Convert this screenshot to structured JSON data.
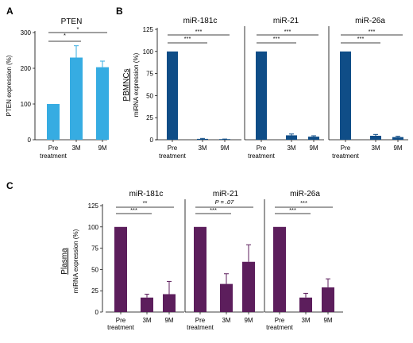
{
  "colors": {
    "pten": "#36ace2",
    "pbmnc": "#0f4d87",
    "plasma": "#5c1e5c",
    "axis": "#000000"
  },
  "chart_data": [
    {
      "panel": "A",
      "type": "bar",
      "title": "PTEN",
      "ylabel": "PTEN expression (%)",
      "categories": [
        "Pre treatment",
        "3M",
        "9M"
      ],
      "values": [
        100,
        230,
        203
      ],
      "errors": [
        0,
        33,
        17
      ],
      "ylim": [
        0,
        300
      ],
      "yticks": [
        0,
        100,
        200,
        300
      ],
      "color": "pten",
      "comparisons": [
        {
          "from": "Pre treatment",
          "to": "3M",
          "label": "*"
        },
        {
          "from": "Pre treatment",
          "to": "9M",
          "label": "*"
        }
      ]
    },
    {
      "panel": "B",
      "type": "bar",
      "row_label": "PBMNCs",
      "ylabel": "miRNA expression (%)",
      "ylim": [
        0,
        125
      ],
      "yticks": [
        0,
        25,
        50,
        75,
        100,
        125
      ],
      "color": "pbmnc",
      "facets": [
        {
          "title": "miR-181c",
          "categories": [
            "Pre treatment",
            "3M",
            "9M"
          ],
          "values": [
            100,
            1,
            0.5
          ],
          "errors": [
            0,
            0.5,
            0.3
          ],
          "comparisons": [
            {
              "from": "Pre treatment",
              "to": "3M",
              "label": "***"
            },
            {
              "from": "Pre treatment",
              "to": "9M",
              "label": "***"
            }
          ]
        },
        {
          "title": "miR-21",
          "categories": [
            "Pre treatment",
            "3M",
            "9M"
          ],
          "values": [
            100,
            5,
            3.5
          ],
          "errors": [
            0,
            1.5,
            1
          ],
          "comparisons": [
            {
              "from": "Pre treatment",
              "to": "3M",
              "label": "***"
            },
            {
              "from": "Pre treatment",
              "to": "9M",
              "label": "***"
            }
          ]
        },
        {
          "title": "miR-26a",
          "categories": [
            "Pre treatment",
            "3M",
            "9M"
          ],
          "values": [
            100,
            4.5,
            3
          ],
          "errors": [
            0,
            1.5,
            1
          ],
          "comparisons": [
            {
              "from": "Pre treatment",
              "to": "3M",
              "label": "***"
            },
            {
              "from": "Pre treatment",
              "to": "9M",
              "label": "***"
            }
          ]
        }
      ]
    },
    {
      "panel": "C",
      "type": "bar",
      "row_label": "Plasma",
      "ylabel": "miRNA expression (%)",
      "ylim": [
        0,
        125
      ],
      "yticks": [
        0,
        25,
        50,
        75,
        100,
        125
      ],
      "color": "plasma",
      "facets": [
        {
          "title": "miR-181c",
          "categories": [
            "Pre treatment",
            "3M",
            "9M"
          ],
          "values": [
            100,
            17,
            21
          ],
          "errors": [
            0,
            4,
            15
          ],
          "comparisons": [
            {
              "from": "Pre treatment",
              "to": "3M",
              "label": "***"
            },
            {
              "from": "Pre treatment",
              "to": "9M",
              "label": "**"
            }
          ]
        },
        {
          "title": "miR-21",
          "categories": [
            "Pre treatment",
            "3M",
            "9M"
          ],
          "values": [
            100,
            33,
            59
          ],
          "errors": [
            0,
            12,
            20
          ],
          "comparisons": [
            {
              "from": "Pre treatment",
              "to": "3M",
              "label": "***"
            },
            {
              "from": "Pre treatment",
              "to": "9M",
              "label": "P = .07"
            }
          ]
        },
        {
          "title": "miR-26a",
          "categories": [
            "Pre treatment",
            "3M",
            "9M"
          ],
          "values": [
            100,
            17,
            29
          ],
          "errors": [
            0,
            5,
            10
          ],
          "comparisons": [
            {
              "from": "Pre treatment",
              "to": "3M",
              "label": "***"
            },
            {
              "from": "Pre treatment",
              "to": "9M",
              "label": "***"
            }
          ]
        }
      ]
    }
  ]
}
